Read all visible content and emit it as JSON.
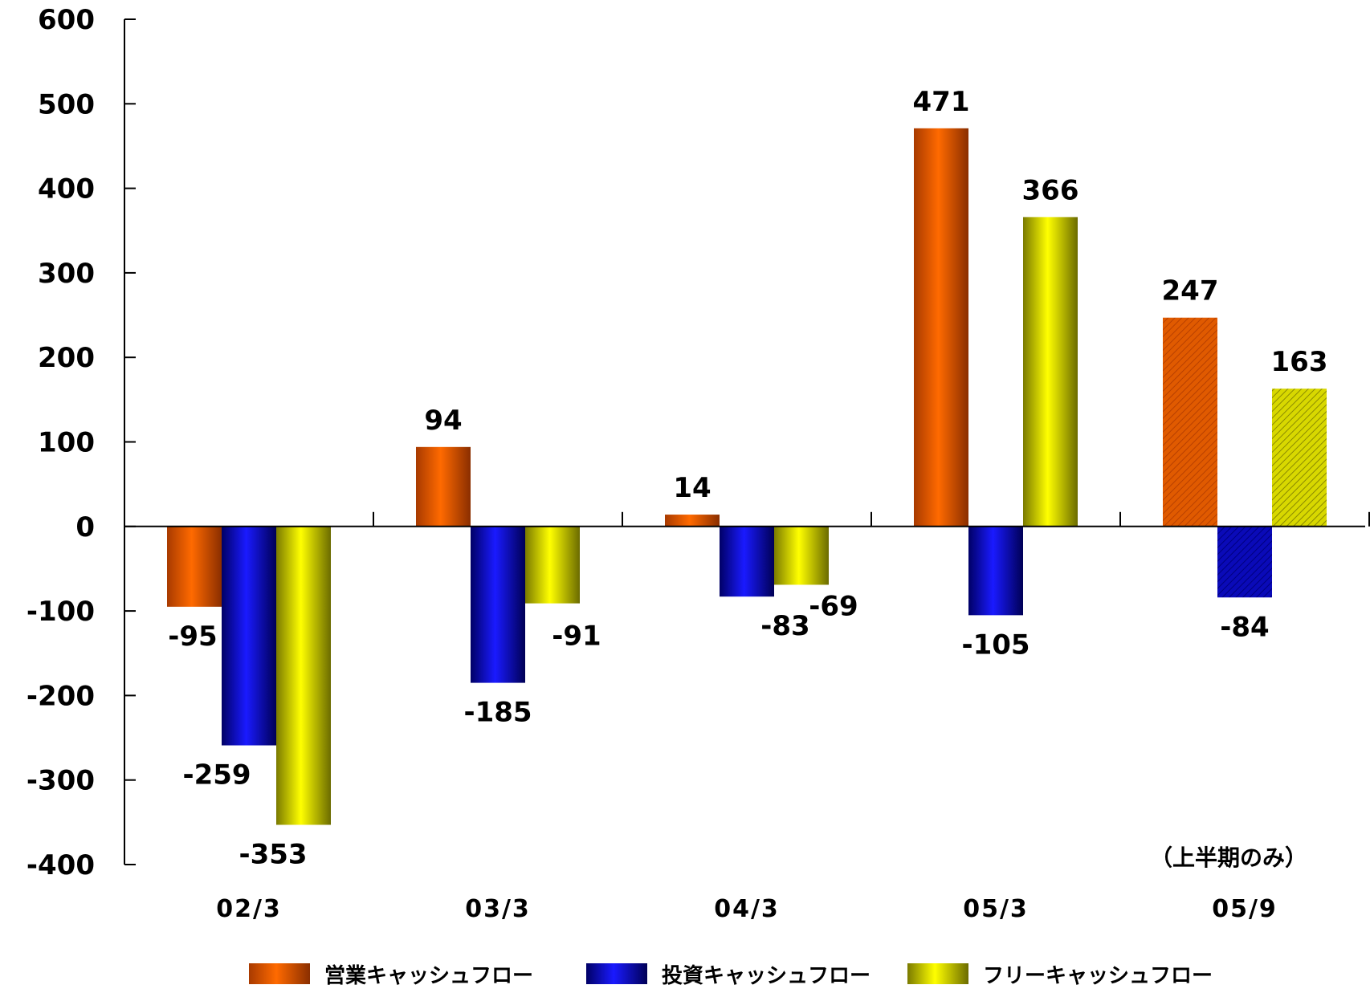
{
  "chart_data": {
    "type": "bar",
    "categories": [
      "02/3",
      "03/3",
      "04/3",
      "05/3",
      "05/9"
    ],
    "series": [
      {
        "name": "営業キャッシュフロー",
        "values": [
          -95,
          94,
          14,
          471,
          247
        ],
        "color": "#ff6600"
      },
      {
        "name": "投資キャッシュフロー",
        "values": [
          -259,
          -185,
          -83,
          -105,
          -84
        ],
        "color": "#0000cc"
      },
      {
        "name": "フリーキャッシュフロー",
        "values": [
          -353,
          -91,
          -69,
          366,
          163
        ],
        "color": "#ffff00"
      }
    ],
    "data_labels": [
      [
        "-95",
        "94",
        "14",
        "471",
        "247"
      ],
      [
        "-259",
        "-185",
        "-83",
        "-105",
        "-84"
      ],
      [
        "-353",
        "-91",
        "-69",
        "366",
        "163"
      ]
    ],
    "ylim": [
      -400,
      600
    ],
    "yticks": [
      600,
      500,
      400,
      300,
      200,
      100,
      0,
      -100,
      -200,
      -300,
      -400
    ],
    "ytick_labels": [
      "600",
      "500",
      "400",
      "300",
      "200",
      "100",
      "0",
      "-100",
      "-200",
      "-300",
      "-400"
    ],
    "annotation": "（上半期のみ）",
    "legend_position": "bottom",
    "grid": false
  }
}
